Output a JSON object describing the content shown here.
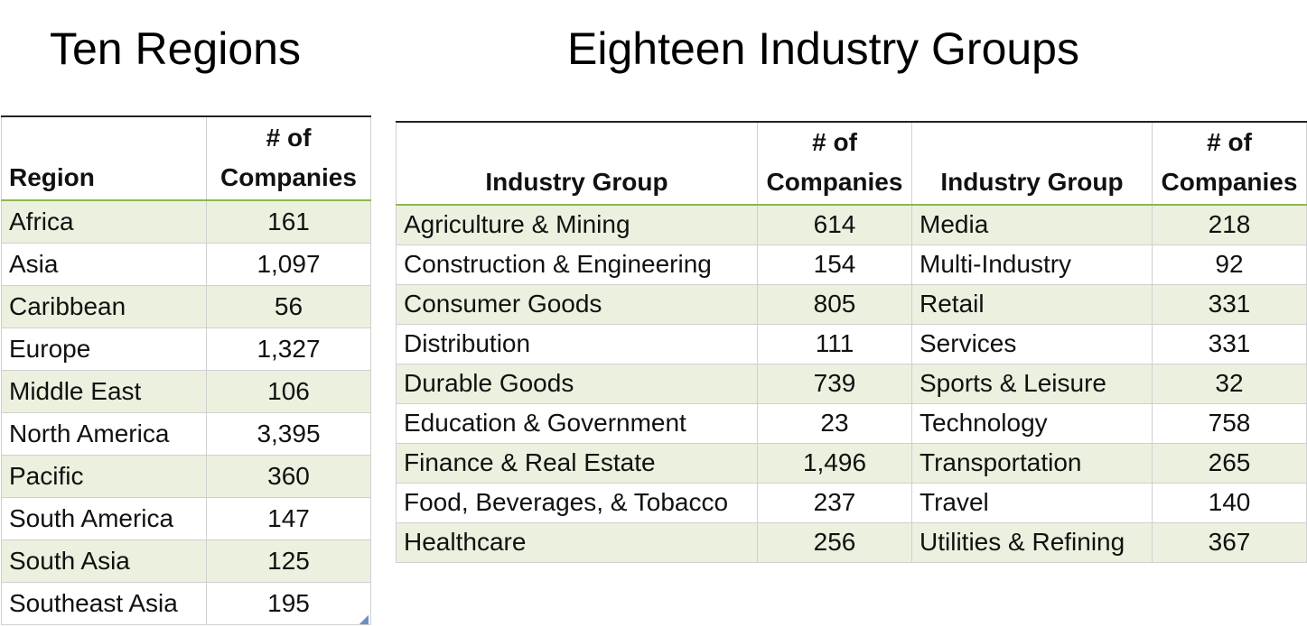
{
  "titles": {
    "left": "Ten Regions",
    "right": "Eighteen Industry Groups"
  },
  "regions": {
    "header": {
      "col1": "Region",
      "col2": "# of Companies"
    },
    "rows": [
      {
        "name": "Africa",
        "count": "161"
      },
      {
        "name": "Asia",
        "count": "1,097"
      },
      {
        "name": "Caribbean",
        "count": "56"
      },
      {
        "name": "Europe",
        "count": "1,327"
      },
      {
        "name": "Middle East",
        "count": "106"
      },
      {
        "name": "North America",
        "count": "3,395"
      },
      {
        "name": "Pacific",
        "count": "360"
      },
      {
        "name": "South America",
        "count": "147"
      },
      {
        "name": "South Asia",
        "count": "125"
      },
      {
        "name": "Southeast Asia",
        "count": "195"
      }
    ]
  },
  "industries": {
    "header": {
      "group": "Industry Group",
      "count": "# of Companies"
    },
    "rows": [
      {
        "group1": "Agriculture & Mining",
        "count1": "614",
        "group2": "Media",
        "count2": "218"
      },
      {
        "group1": "Construction & Engineering",
        "count1": "154",
        "group2": "Multi-Industry",
        "count2": "92"
      },
      {
        "group1": "Consumer Goods",
        "count1": "805",
        "group2": "Retail",
        "count2": "331"
      },
      {
        "group1": "Distribution",
        "count1": "111",
        "group2": "Services",
        "count2": "331"
      },
      {
        "group1": "Durable Goods",
        "count1": "739",
        "group2": "Sports & Leisure",
        "count2": "32"
      },
      {
        "group1": "Education & Government",
        "count1": "23",
        "group2": "Technology",
        "count2": "758"
      },
      {
        "group1": "Finance & Real Estate",
        "count1": "1,496",
        "group2": "Transportation",
        "count2": "265"
      },
      {
        "group1": "Food, Beverages, & Tobacco",
        "count1": "237",
        "group2": "Travel",
        "count2": "140"
      },
      {
        "group1": "Healthcare",
        "count1": "256",
        "group2": "Utilities & Refining",
        "count2": "367"
      }
    ]
  },
  "colors": {
    "row_shade": "#ebf1de",
    "header_rule": "#8cb84e",
    "grid": "#d0d0d0"
  }
}
